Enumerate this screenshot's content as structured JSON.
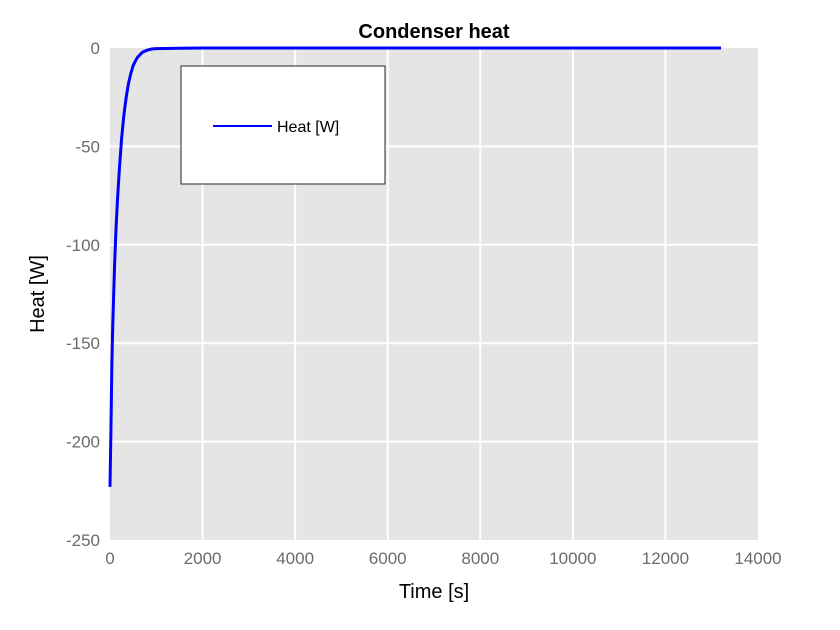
{
  "chart_data": {
    "type": "line",
    "title": "Condenser heat",
    "xlabel": "Time [s]",
    "ylabel": "Heat [W]",
    "xlim": [
      0,
      14000
    ],
    "ylim": [
      -250,
      0
    ],
    "xticks": [
      0,
      2000,
      4000,
      6000,
      8000,
      10000,
      12000,
      14000
    ],
    "yticks": [
      0,
      -50,
      -100,
      -150,
      -200,
      -250
    ],
    "xtick_labels": [
      "0",
      "2000",
      "4000",
      "6000",
      "8000",
      "10000",
      "12000",
      "14000"
    ],
    "ytick_labels": [
      "0",
      "-50",
      "-100",
      "-150",
      "-200",
      "-250"
    ],
    "grid": true,
    "legend_position": "top-left",
    "colors": {
      "plot_background": "#e5e5e5",
      "grid": "#ffffff",
      "series": "#0000ff"
    },
    "series": [
      {
        "name": "Heat [W]",
        "x": [
          0,
          20,
          40,
          60,
          80,
          100,
          130,
          160,
          200,
          250,
          300,
          350,
          400,
          450,
          500,
          550,
          600,
          700,
          800,
          900,
          1000,
          1500,
          2000,
          4000,
          6000,
          8000,
          10000,
          12000,
          13200
        ],
        "y": [
          -223,
          -195,
          -160,
          -140,
          -125,
          -110,
          -92,
          -78,
          -62,
          -46,
          -34,
          -25,
          -18,
          -13,
          -9,
          -6.5,
          -4.5,
          -2.2,
          -1.1,
          -0.5,
          -0.3,
          -0.1,
          0,
          0,
          0,
          0,
          0,
          0,
          0
        ]
      }
    ]
  }
}
